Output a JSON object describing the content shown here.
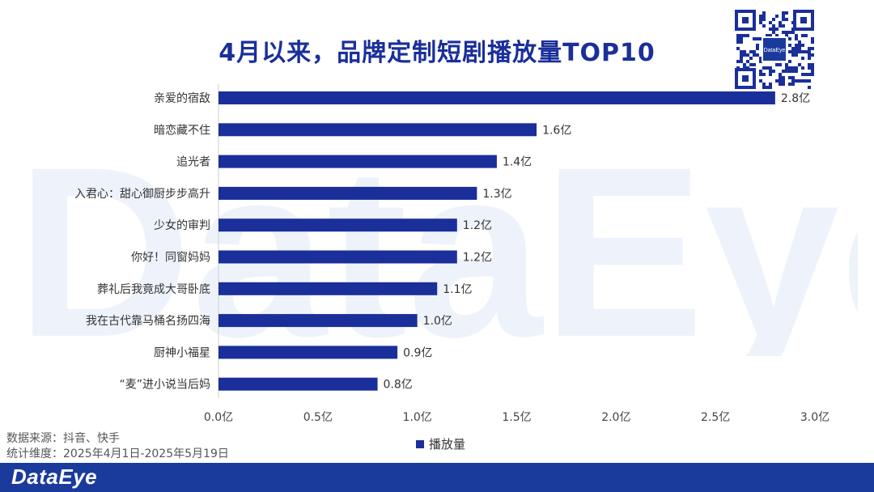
{
  "title": "4月以来，品牌定制短剧播放量TOP10",
  "brand": "DataEye",
  "colors": {
    "bar": "#1a2f9a",
    "title": "#1a2f9a",
    "footer": "#1a3a9c",
    "watermark": "#eef3fb"
  },
  "source_lines": [
    "数据来源：抖音、快手",
    "统计维度：2025年4月1日-2025年5月19日"
  ],
  "legend": {
    "label": "播放量"
  },
  "chart_data": {
    "type": "bar",
    "orientation": "horizontal",
    "title": "4月以来，品牌定制短剧播放量TOP10",
    "categories": [
      "亲爱的宿敌",
      "暗恋藏不住",
      "追光者",
      "入君心：甜心御厨步步高升",
      "少女的审判",
      "你好！同窗妈妈",
      "葬礼后我竟成大哥卧底",
      "我在古代靠马桶名扬四海",
      "厨神小福星",
      "“麦”进小说当后妈"
    ],
    "values": [
      2.8,
      1.6,
      1.4,
      1.3,
      1.2,
      1.2,
      1.1,
      1.0,
      0.9,
      0.8
    ],
    "data_labels": [
      "2.8亿",
      "1.6亿",
      "1.4亿",
      "1.3亿",
      "1.2亿",
      "1.2亿",
      "1.1亿",
      "1.0亿",
      "0.9亿",
      "0.8亿"
    ],
    "series": [
      {
        "name": "播放量",
        "values": [
          2.8,
          1.6,
          1.4,
          1.3,
          1.2,
          1.2,
          1.1,
          1.0,
          0.9,
          0.8
        ]
      }
    ],
    "xlim": [
      0,
      3.0
    ],
    "x_ticks": [
      0,
      0.5,
      1.0,
      1.5,
      2.0,
      2.5,
      3.0
    ],
    "x_tick_labels": [
      "0.0亿",
      "0.5亿",
      "1.0亿",
      "1.5亿",
      "2.0亿",
      "2.5亿",
      "3.0亿"
    ],
    "xlabel": "",
    "ylabel": "",
    "grid": false,
    "legend_position": "bottom"
  }
}
